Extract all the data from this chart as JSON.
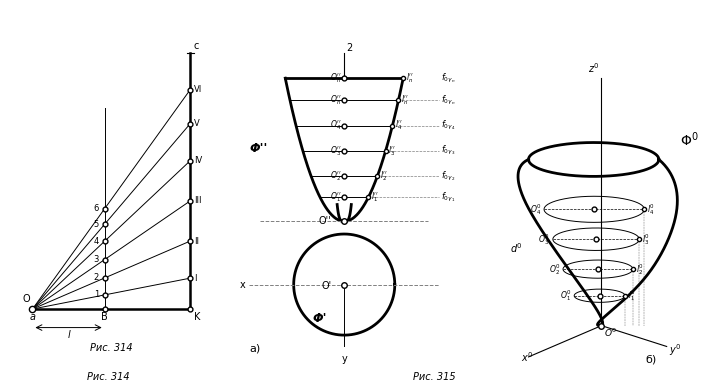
{
  "bg_color": "#ffffff",
  "fig_width": 7.24,
  "fig_height": 3.88,
  "caption_314": "Рис. 314",
  "caption_315": "Рис. 315",
  "label_a": "а)",
  "label_b": "б)"
}
